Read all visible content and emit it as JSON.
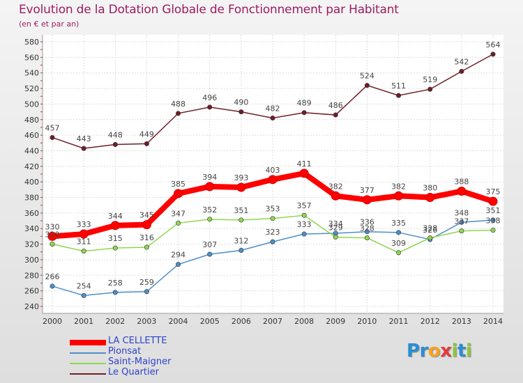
{
  "title": "Evolution de la Dotation Globale de Fonctionnement par Habitant",
  "subtitle": "(en € et par an)",
  "colors": {
    "plot_bg": "#ffffff",
    "grid": "#dddddd",
    "axis": "#999999",
    "legend_text": "#2e43c9",
    "title": "#9c1d63"
  },
  "logo": {
    "letters": [
      {
        "ch": "P",
        "color": "#2a8ed2"
      },
      {
        "ch": "r",
        "color": "#2a8ed2"
      },
      {
        "ch": "o",
        "color": "#f7a21b"
      },
      {
        "ch": "x",
        "color": "#e53a3a"
      },
      {
        "ch": "i",
        "color": "#8cc63f"
      },
      {
        "ch": "t",
        "color": "#2a8ed2"
      },
      {
        "ch": "i",
        "color": "#8cc63f"
      }
    ]
  },
  "chart_data": {
    "type": "line",
    "title": "Evolution de la Dotation Globale de Fonctionnement par Habitant",
    "subtitle": "(en € et par an)",
    "x": [
      2000,
      2001,
      2002,
      2003,
      2004,
      2005,
      2006,
      2007,
      2008,
      2009,
      2010,
      2011,
      2012,
      2013,
      2014
    ],
    "ylim": [
      240,
      580
    ],
    "yticks": [
      240,
      260,
      280,
      300,
      320,
      340,
      360,
      380,
      400,
      420,
      440,
      460,
      480,
      500,
      520,
      540,
      560,
      580
    ],
    "grid": true,
    "legend_position": "bottom-left",
    "series": [
      {
        "name": "LA CELLETTE",
        "color": "#ff0000",
        "emphasis": true,
        "values": [
          330,
          333,
          344,
          345,
          385,
          394,
          393,
          403,
          411,
          382,
          377,
          382,
          380,
          388,
          375
        ]
      },
      {
        "name": "Pionsat",
        "color": "#4d8ec9",
        "emphasis": false,
        "values": [
          266,
          254,
          258,
          259,
          294,
          307,
          312,
          323,
          333,
          334,
          336,
          335,
          326,
          348,
          351
        ]
      },
      {
        "name": "Saint-Maigner",
        "color": "#8fd64f",
        "emphasis": false,
        "values": [
          320,
          311,
          315,
          316,
          347,
          352,
          351,
          353,
          357,
          329,
          328,
          309,
          328,
          337,
          338
        ]
      },
      {
        "name": "Le Quartier",
        "color": "#6e1e26",
        "emphasis": false,
        "values": [
          457,
          443,
          448,
          449,
          488,
          496,
          490,
          482,
          489,
          486,
          524,
          511,
          519,
          542,
          564
        ]
      }
    ]
  }
}
